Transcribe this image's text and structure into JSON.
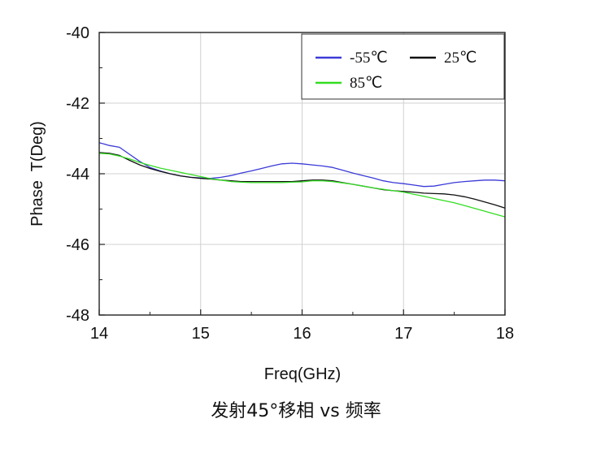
{
  "chart_data": {
    "type": "line",
    "title": "",
    "xlabel": "Freq(GHz)",
    "ylabel": "Phase  T(Deg)",
    "xlim": [
      14,
      18
    ],
    "ylim": [
      -48,
      -40
    ],
    "xticks": [
      14,
      15,
      16,
      17,
      18
    ],
    "yticks": [
      -40,
      -42,
      -44,
      -46,
      -48
    ],
    "grid": true,
    "legend_position": "top-right",
    "series": [
      {
        "name": "-55℃",
        "color": "#3a3ad8",
        "x": [
          14.0,
          14.1,
          14.2,
          14.3,
          14.4,
          14.5,
          14.6,
          14.7,
          14.8,
          14.9,
          15.0,
          15.1,
          15.2,
          15.3,
          15.4,
          15.5,
          15.6,
          15.7,
          15.8,
          15.9,
          16.0,
          16.1,
          16.2,
          16.3,
          16.4,
          16.5,
          16.6,
          16.7,
          16.8,
          16.9,
          17.0,
          17.1,
          17.2,
          17.3,
          17.4,
          17.5,
          17.6,
          17.7,
          17.8,
          17.9,
          18.0
        ],
        "values": [
          -43.12,
          -43.2,
          -43.25,
          -43.45,
          -43.65,
          -43.82,
          -43.92,
          -44.0,
          -44.06,
          -44.1,
          -44.12,
          -44.13,
          -44.1,
          -44.05,
          -43.98,
          -43.92,
          -43.85,
          -43.78,
          -43.72,
          -43.7,
          -43.72,
          -43.75,
          -43.78,
          -43.82,
          -43.9,
          -43.98,
          -44.05,
          -44.12,
          -44.2,
          -44.25,
          -44.28,
          -44.32,
          -44.36,
          -44.35,
          -44.3,
          -44.25,
          -44.22,
          -44.2,
          -44.18,
          -44.18,
          -44.2
        ]
      },
      {
        "name": "25℃",
        "color": "#111111",
        "x": [
          14.0,
          14.1,
          14.2,
          14.3,
          14.4,
          14.5,
          14.6,
          14.7,
          14.8,
          14.9,
          15.0,
          15.1,
          15.2,
          15.3,
          15.4,
          15.5,
          15.6,
          15.7,
          15.8,
          15.9,
          16.0,
          16.1,
          16.2,
          16.3,
          16.4,
          16.5,
          16.6,
          16.7,
          16.8,
          16.9,
          17.0,
          17.1,
          17.2,
          17.3,
          17.4,
          17.5,
          17.6,
          17.7,
          17.8,
          17.9,
          18.0
        ],
        "values": [
          -43.4,
          -43.42,
          -43.48,
          -43.62,
          -43.75,
          -43.85,
          -43.93,
          -44.0,
          -44.06,
          -44.1,
          -44.13,
          -44.15,
          -44.18,
          -44.2,
          -44.22,
          -44.22,
          -44.22,
          -44.22,
          -44.22,
          -44.22,
          -44.2,
          -44.18,
          -44.18,
          -44.2,
          -44.25,
          -44.3,
          -44.35,
          -44.4,
          -44.45,
          -44.48,
          -44.5,
          -44.52,
          -44.55,
          -44.56,
          -44.57,
          -44.6,
          -44.65,
          -44.72,
          -44.8,
          -44.88,
          -44.97
        ]
      },
      {
        "name": "85℃",
        "color": "#33dd22",
        "x": [
          14.0,
          14.1,
          14.2,
          14.3,
          14.4,
          14.5,
          14.6,
          14.7,
          14.8,
          14.9,
          15.0,
          15.1,
          15.2,
          15.3,
          15.4,
          15.5,
          15.6,
          15.7,
          15.8,
          15.9,
          16.0,
          16.1,
          16.2,
          16.3,
          16.4,
          16.5,
          16.6,
          16.7,
          16.8,
          16.9,
          17.0,
          17.1,
          17.2,
          17.3,
          17.4,
          17.5,
          17.6,
          17.7,
          17.8,
          17.9,
          18.0
        ],
        "values": [
          -43.42,
          -43.44,
          -43.5,
          -43.58,
          -43.68,
          -43.76,
          -43.84,
          -43.9,
          -43.96,
          -44.02,
          -44.08,
          -44.14,
          -44.18,
          -44.22,
          -44.24,
          -44.25,
          -44.25,
          -44.25,
          -44.25,
          -44.24,
          -44.23,
          -44.2,
          -44.2,
          -44.22,
          -44.26,
          -44.3,
          -44.35,
          -44.4,
          -44.44,
          -44.48,
          -44.52,
          -44.58,
          -44.64,
          -44.7,
          -44.76,
          -44.82,
          -44.9,
          -44.98,
          -45.06,
          -45.14,
          -45.22
        ]
      }
    ]
  },
  "caption": "发射45°移相 vs 频率"
}
